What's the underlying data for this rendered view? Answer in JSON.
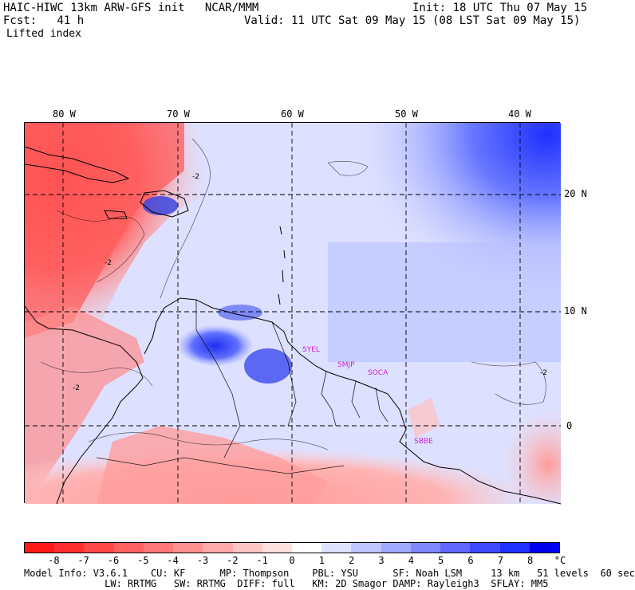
{
  "header": {
    "model": "HAIC-HIWC 13km ARW-GFS init",
    "org": "NCAR/MMM",
    "init": "Init: 18 UTC Thu 07 May 15",
    "fcst_label": "Fcst:",
    "fcst_value": "41 h",
    "valid": "Valid: 11 UTC Sat 09 May 15 (08 LST Sat 09 May 15)",
    "field": "Lifted index"
  },
  "map": {
    "lon_labels": [
      "80 W",
      "70 W",
      "60 W",
      "50 W",
      "40 W"
    ],
    "lat_labels": [
      "20 N",
      "10 N",
      "0"
    ],
    "cities": [
      "SYEL",
      "SMJP",
      "SOCA",
      "SBBE"
    ],
    "contour_label": "-2"
  },
  "colorbar": {
    "labels": [
      "-8",
      "-7",
      "-6",
      "-5",
      "-4",
      "-3",
      "-2",
      "-1",
      "0",
      "1",
      "2",
      "3",
      "4",
      "5",
      "6",
      "7",
      "8"
    ],
    "unit": "°C",
    "colors": [
      "#ff1a1a",
      "#ff3030",
      "#ff4848",
      "#ff6060",
      "#ff7878",
      "#ff9090",
      "#ffaaaa",
      "#ffc4c4",
      "#ffe0e0",
      "#ffffff",
      "#dfe2ff",
      "#c0c6ff",
      "#a0a9ff",
      "#8088ff",
      "#6068ff",
      "#4048ff",
      "#2030ff",
      "#0000ee"
    ]
  },
  "footer": {
    "line1": "Model Info: V3.6.1    CU: KF      MP: Thompson    PBL: YSU      SF: Noah LSM     13 km   51 levels  60 sec",
    "line2": "              LW: RRTMG   SW: RRTMG  DIFF: full   KM: 2D Smagor DAMP: Rayleigh3  SFLAY: MM5"
  }
}
